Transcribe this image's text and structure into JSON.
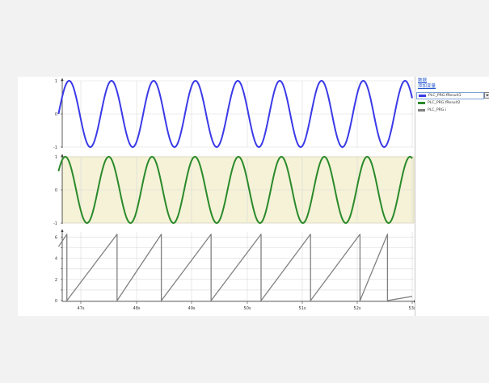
{
  "legend": {
    "links": [
      "数据",
      "添加变量"
    ],
    "colors": {
      "result1": "#3a3ae8",
      "result2": "#2a8a2a",
      "i": "#808080",
      "highlight": "#f5f2d8"
    }
  },
  "chart_data": [
    {
      "type": "line",
      "x_ticks": [
        "47s",
        "48s",
        "49s",
        "50s",
        "51s",
        "52s",
        "53s"
      ],
      "y_ticks": [
        "1",
        "0",
        "-1"
      ],
      "ylim": [
        -1,
        1
      ],
      "grid": true,
      "legend_placement": "right",
      "series": [
        {
          "name": "PLC_PRG.fResult1",
          "color": "#3a3ae8",
          "function": "sin",
          "period_s": 0.76,
          "phase": 0,
          "x_start_s": 46.6,
          "x_end_s": 53.0
        }
      ]
    },
    {
      "type": "line",
      "x_ticks": [
        "47s",
        "48s",
        "49s",
        "50s",
        "51s",
        "52s",
        "53s"
      ],
      "y_ticks": [
        "1",
        "0",
        "-1"
      ],
      "ylim": [
        -1,
        1
      ],
      "grid": true,
      "highlighted_background": true,
      "series": [
        {
          "name": "PLC_PRG.fResult2",
          "color": "#2a8a2a",
          "function": "sin",
          "period_s": 0.78,
          "phase": 0.6,
          "x_start_s": 46.6,
          "x_end_s": 53.0
        }
      ]
    },
    {
      "type": "line",
      "x_ticks": [
        "47s",
        "48s",
        "49s",
        "50s",
        "51s",
        "52s",
        "53s"
      ],
      "y_ticks": [
        "6",
        "4",
        "2",
        "0"
      ],
      "ylim": [
        0,
        6.5
      ],
      "grid": true,
      "series": [
        {
          "name": "PLC_PRG.i",
          "color": "#808080",
          "function": "sawtooth",
          "peak": 6.28,
          "points": [
            [
              46.6,
              5.1
            ],
            [
              46.75,
              6.28
            ],
            [
              46.75,
              0
            ],
            [
              47.65,
              6.28
            ],
            [
              47.65,
              0
            ],
            [
              48.45,
              6.28
            ],
            [
              48.45,
              0
            ],
            [
              49.35,
              6.28
            ],
            [
              49.35,
              0
            ],
            [
              50.25,
              6.28
            ],
            [
              50.25,
              0
            ],
            [
              51.15,
              6.28
            ],
            [
              51.15,
              0
            ],
            [
              52.05,
              6.28
            ],
            [
              52.05,
              0
            ],
            [
              52.55,
              6.28
            ],
            [
              52.55,
              0
            ],
            [
              53.0,
              0.4
            ]
          ]
        }
      ]
    }
  ]
}
